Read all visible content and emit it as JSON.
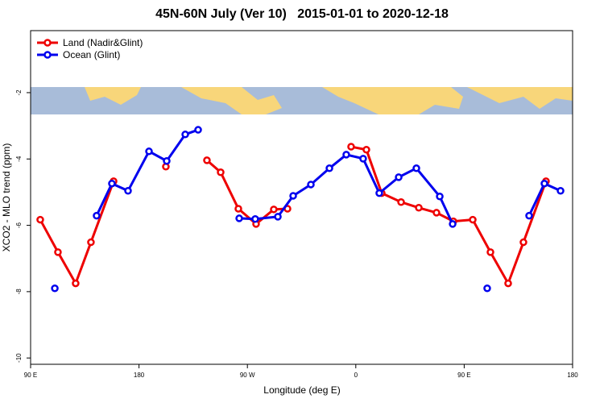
{
  "chart_data": {
    "type": "line",
    "title": "45N-60N July (Ver 10)   2015-01-01 to 2020-12-18",
    "x_label": "Longitude (deg E)",
    "y_label": "XCO2 - MLO trend (ppm)",
    "xlim": [
      90,
      540
    ],
    "ylim": [
      -10.19,
      -0.13
    ],
    "xticks": [
      {
        "value": 90,
        "label": "90 E"
      },
      {
        "value": 180,
        "label": "180"
      },
      {
        "value": 270,
        "label": "90 W"
      },
      {
        "value": 360,
        "label": "0"
      },
      {
        "value": 450,
        "label": "90 E"
      },
      {
        "value": 540,
        "label": "180"
      }
    ],
    "yticks": [
      -2,
      -4,
      -6,
      -8,
      -10
    ],
    "legend": "top-left",
    "series": [
      {
        "name": "Land (Nadir&Glint)",
        "color": "#ee0000",
        "x": [
          98,
          112.7,
          127.4,
          140.1,
          158.9,
          null,
          202.3,
          null,
          236.4,
          247.8,
          262.5,
          277.2,
          291.9,
          303.3,
          null,
          356.1,
          368.8,
          381.5,
          397.6,
          412.3,
          427.0,
          441.0,
          457.1,
          471.8,
          486.5,
          499.2,
          517.9
        ],
        "values": [
          -5.83,
          -6.81,
          -7.75,
          -6.51,
          -4.67,
          null,
          -4.23,
          null,
          -4.04,
          -4.4,
          -5.5,
          -5.96,
          -5.52,
          -5.5,
          null,
          -3.63,
          -3.72,
          -5.03,
          -5.3,
          -5.47,
          -5.62,
          -5.88,
          -5.83,
          -6.81,
          -7.75,
          -6.51,
          -4.67
        ]
      },
      {
        "name": "Ocean (Glint)",
        "color": "#0000ee",
        "x": [
          110.1,
          null,
          144.8,
          157.5,
          170.9,
          188.3,
          203.0,
          218.4,
          229.1,
          null,
          263.2,
          276.5,
          295.3,
          308.0,
          322.7,
          338.1,
          352.1,
          366.1,
          379.5,
          395.6,
          410.3,
          429.7,
          440.4,
          null,
          469.1,
          null,
          503.9,
          516.6,
          530.0
        ],
        "values": [
          -7.9,
          null,
          -5.71,
          -4.74,
          -4.96,
          -3.77,
          -4.06,
          -3.26,
          -3.12,
          null,
          -5.79,
          -5.81,
          -5.74,
          -5.11,
          -4.77,
          -4.28,
          -3.87,
          -3.99,
          -5.03,
          -4.55,
          -4.28,
          -5.13,
          -5.96,
          null,
          -7.9,
          null,
          -5.71,
          -4.74,
          -4.96
        ]
      }
    ]
  }
}
